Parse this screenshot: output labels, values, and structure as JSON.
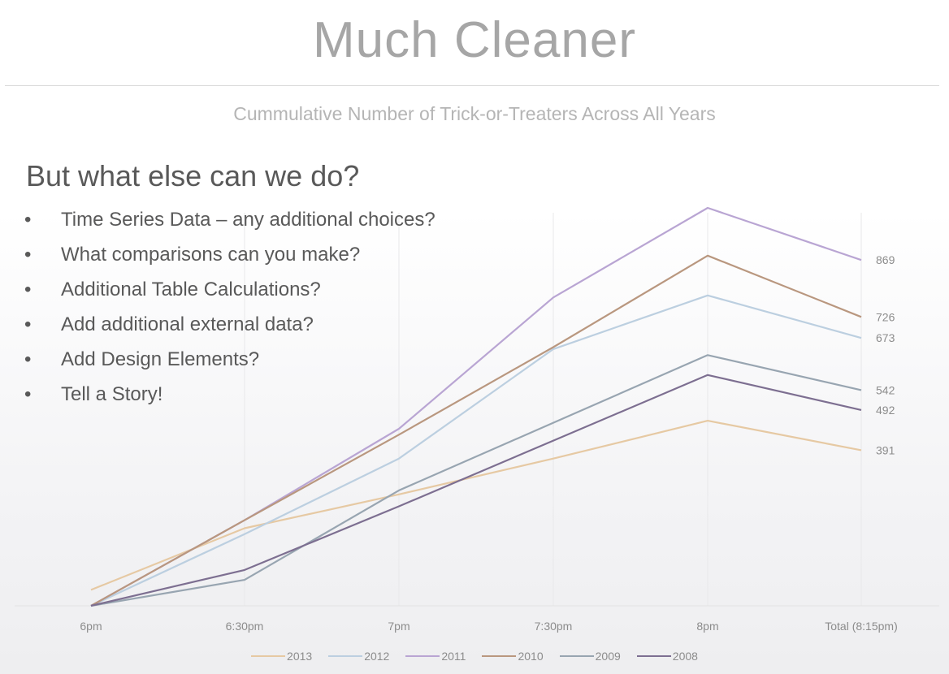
{
  "slide": {
    "title": "Much Cleaner",
    "overlay": {
      "heading": "But what else can we do?",
      "bullets": [
        "Time Series Data – any additional choices?",
        "What comparisons can you make?",
        "Additional Table Calculations?",
        "Add additional external data?",
        "Add Design Elements?",
        "Tell a Story!"
      ]
    }
  },
  "chart_data": {
    "type": "line",
    "title": "Cummulative Number of Trick-or-Treaters Across All Years",
    "xlabel": "",
    "ylabel": "",
    "categories": [
      "6pm",
      "6:30pm",
      "7pm",
      "7:30pm",
      "8pm",
      "Total (8:15pm)"
    ],
    "ylim": [
      0,
      1000
    ],
    "grid": "vertical",
    "legend": "bottom",
    "end_labels": true,
    "series": [
      {
        "name": "2013",
        "color": "#e6c9a3",
        "values": [
          40,
          195,
          280,
          370,
          465,
          391
        ]
      },
      {
        "name": "2012",
        "color": "#bccfe0",
        "values": [
          0,
          180,
          370,
          645,
          780,
          673
        ]
      },
      {
        "name": "2011",
        "color": "#b9a5d3",
        "values": [
          0,
          215,
          445,
          775,
          1000,
          869
        ]
      },
      {
        "name": "2010",
        "color": "#b9977f",
        "values": [
          0,
          215,
          430,
          650,
          880,
          726
        ]
      },
      {
        "name": "2009",
        "color": "#98a5b1",
        "values": [
          0,
          65,
          290,
          460,
          630,
          542
        ]
      },
      {
        "name": "2008",
        "color": "#7d6f91",
        "values": [
          0,
          90,
          250,
          415,
          580,
          492
        ]
      }
    ]
  }
}
